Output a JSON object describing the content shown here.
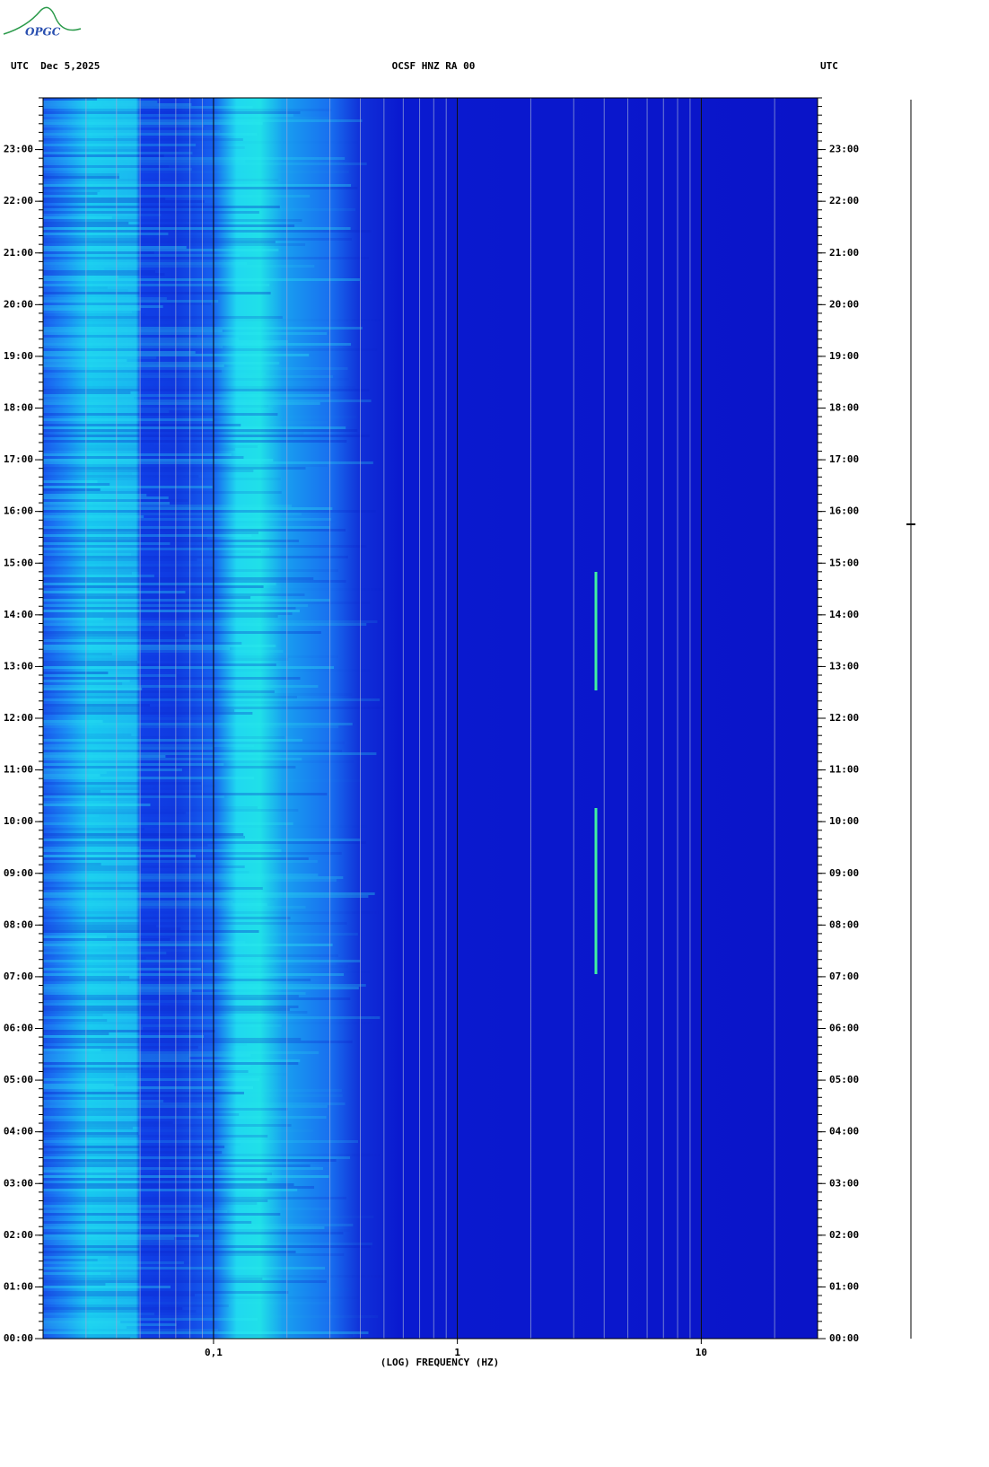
{
  "header": {
    "logo": "OPGC"
  },
  "chart_data": {
    "type": "spectrogram",
    "title": "OCSF HNZ RA 00",
    "left_label": "UTC  Dec 5,2025",
    "right_label": "UTC",
    "x_label": "(LOG) FREQUENCY (HZ)",
    "xscale": "log",
    "xlim": [
      0.02,
      30
    ],
    "xticks": [
      {
        "value": 0.1,
        "label": "0,1"
      },
      1,
      10
    ],
    "ylim": [
      0,
      24
    ],
    "yticks": [
      {
        "value": 0,
        "label": "00:00"
      },
      {
        "value": 1,
        "label": "01:00"
      },
      {
        "value": 2,
        "label": "02:00"
      },
      {
        "value": 3,
        "label": "03:00"
      },
      {
        "value": 4,
        "label": "04:00"
      },
      {
        "value": 5,
        "label": "05:00"
      },
      {
        "value": 6,
        "label": "06:00"
      },
      {
        "value": 7,
        "label": "07:00"
      },
      {
        "value": 8,
        "label": "08:00"
      },
      {
        "value": 9,
        "label": "09:00"
      },
      {
        "value": 10,
        "label": "10:00"
      },
      {
        "value": 11,
        "label": "11:00"
      },
      {
        "value": 12,
        "label": "12:00"
      },
      {
        "value": 13,
        "label": "13:00"
      },
      {
        "value": 14,
        "label": "14:00"
      },
      {
        "value": 15,
        "label": "15:00"
      },
      {
        "value": 16,
        "label": "16:00"
      },
      {
        "value": 17,
        "label": "17:00"
      },
      {
        "value": 18,
        "label": "18:00"
      },
      {
        "value": 19,
        "label": "19:00"
      },
      {
        "value": 20,
        "label": "20:00"
      },
      {
        "value": 21,
        "label": "21:00"
      },
      {
        "value": 22,
        "label": "22:00"
      },
      {
        "value": 23,
        "label": "23:00"
      }
    ]
  }
}
